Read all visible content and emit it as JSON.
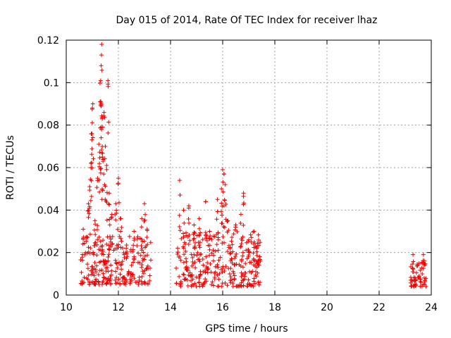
{
  "chart_data": {
    "type": "scatter",
    "title": "Day 015 of 2014, Rate Of TEC Index for receiver lhaz",
    "xlabel": "GPS time / hours",
    "ylabel": "ROTI / TECUs",
    "xlim": [
      10,
      24
    ],
    "ylim": [
      0,
      0.12
    ],
    "xticks": [
      "10",
      "12",
      "14",
      "16",
      "18",
      "20",
      "22",
      "24"
    ],
    "yticks": [
      "0",
      "0.02",
      "0.04",
      "0.06",
      "0.08",
      "0.1",
      "0.12"
    ],
    "grid": true,
    "marker": "+",
    "color": "#ee0000",
    "series": [
      {
        "name": "ROTI",
        "segments": [
          {
            "x_start": 10.55,
            "x_end": 13.25,
            "y_base": [
              0.005,
              0.028
            ]
          },
          {
            "x_start": 14.2,
            "x_end": 17.45,
            "y_base": [
              0.004,
              0.03
            ]
          },
          {
            "x_start": 23.2,
            "x_end": 23.8,
            "y_base": [
              0.004,
              0.016
            ]
          }
        ],
        "peaks": [
          {
            "x": 10.65,
            "y": 0.031
          },
          {
            "x": 10.85,
            "y": 0.043
          },
          {
            "x": 10.9,
            "y": 0.051
          },
          {
            "x": 10.95,
            "y": 0.062
          },
          {
            "x": 10.98,
            "y": 0.076
          },
          {
            "x": 11.0,
            "y": 0.088
          },
          {
            "x": 11.02,
            "y": 0.09
          },
          {
            "x": 11.1,
            "y": 0.035
          },
          {
            "x": 11.2,
            "y": 0.055
          },
          {
            "x": 11.25,
            "y": 0.071
          },
          {
            "x": 11.3,
            "y": 0.091
          },
          {
            "x": 11.32,
            "y": 0.101
          },
          {
            "x": 11.34,
            "y": 0.108
          },
          {
            "x": 11.35,
            "y": 0.113
          },
          {
            "x": 11.36,
            "y": 0.118
          },
          {
            "x": 11.38,
            "y": 0.083
          },
          {
            "x": 11.4,
            "y": 0.079
          },
          {
            "x": 11.45,
            "y": 0.086
          },
          {
            "x": 11.5,
            "y": 0.07
          },
          {
            "x": 11.55,
            "y": 0.061
          },
          {
            "x": 11.6,
            "y": 0.101
          },
          {
            "x": 11.65,
            "y": 0.048
          },
          {
            "x": 11.75,
            "y": 0.038
          },
          {
            "x": 11.9,
            "y": 0.043
          },
          {
            "x": 12.0,
            "y": 0.055
          },
          {
            "x": 12.1,
            "y": 0.036
          },
          {
            "x": 12.3,
            "y": 0.022
          },
          {
            "x": 12.6,
            "y": 0.03
          },
          {
            "x": 12.9,
            "y": 0.036
          },
          {
            "x": 13.0,
            "y": 0.043
          },
          {
            "x": 13.1,
            "y": 0.031
          },
          {
            "x": 14.35,
            "y": 0.054
          },
          {
            "x": 14.5,
            "y": 0.04
          },
          {
            "x": 14.7,
            "y": 0.042
          },
          {
            "x": 14.9,
            "y": 0.033
          },
          {
            "x": 15.1,
            "y": 0.036
          },
          {
            "x": 15.35,
            "y": 0.044
          },
          {
            "x": 15.5,
            "y": 0.03
          },
          {
            "x": 15.8,
            "y": 0.045
          },
          {
            "x": 15.95,
            "y": 0.05
          },
          {
            "x": 16.0,
            "y": 0.059
          },
          {
            "x": 16.05,
            "y": 0.057
          },
          {
            "x": 16.1,
            "y": 0.052
          },
          {
            "x": 16.2,
            "y": 0.035
          },
          {
            "x": 16.5,
            "y": 0.033
          },
          {
            "x": 16.7,
            "y": 0.038
          },
          {
            "x": 16.8,
            "y": 0.048
          },
          {
            "x": 17.0,
            "y": 0.026
          },
          {
            "x": 17.3,
            "y": 0.022
          },
          {
            "x": 23.3,
            "y": 0.019
          },
          {
            "x": 23.7,
            "y": 0.019
          }
        ]
      }
    ]
  }
}
